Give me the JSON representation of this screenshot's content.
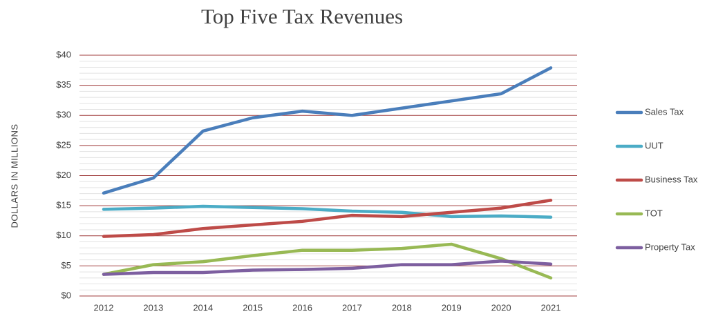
{
  "chart_data": {
    "type": "line",
    "title": "Top Five Tax Revenues",
    "y_label": "DOLLARS IN MILLIONS",
    "categories": [
      "2012",
      "2013",
      "2014",
      "2015",
      "2016",
      "2017",
      "2018",
      "2019",
      "2020",
      "2021"
    ],
    "series": [
      {
        "name": "Sales Tax",
        "color": "#4a7ebb",
        "values": [
          17.1,
          19.6,
          27.4,
          29.6,
          30.7,
          30.0,
          31.2,
          32.4,
          33.6,
          37.9
        ]
      },
      {
        "name": "UUT",
        "color": "#4bacc6",
        "values": [
          14.4,
          14.6,
          14.9,
          14.7,
          14.5,
          14.1,
          13.9,
          13.2,
          13.3,
          13.1
        ]
      },
      {
        "name": "Business Tax",
        "color": "#be4b48",
        "values": [
          9.9,
          10.2,
          11.2,
          11.8,
          12.4,
          13.4,
          13.2,
          13.9,
          14.6,
          15.9
        ]
      },
      {
        "name": "TOT",
        "color": "#98b954",
        "values": [
          3.6,
          5.2,
          5.7,
          6.7,
          7.6,
          7.6,
          7.9,
          8.6,
          6.2,
          3.0
        ]
      },
      {
        "name": "Property Tax",
        "color": "#7d5fa0",
        "values": [
          3.6,
          3.9,
          3.9,
          4.3,
          4.4,
          4.6,
          5.2,
          5.2,
          5.8,
          5.3
        ]
      }
    ],
    "ylim": [
      0,
      40
    ],
    "yticks": [
      {
        "value": 0,
        "label": "$0"
      },
      {
        "value": 5,
        "label": "$5"
      },
      {
        "value": 10,
        "label": "$10"
      },
      {
        "value": 15,
        "label": "$15"
      },
      {
        "value": 20,
        "label": "$20"
      },
      {
        "value": 25,
        "label": "$25"
      },
      {
        "value": 30,
        "label": "$30"
      },
      {
        "value": 35,
        "label": "$35"
      },
      {
        "value": 40,
        "label": "$40"
      }
    ],
    "grid": true,
    "grid_color": "#a03c3c",
    "minor_grid": true,
    "legend": "right"
  }
}
